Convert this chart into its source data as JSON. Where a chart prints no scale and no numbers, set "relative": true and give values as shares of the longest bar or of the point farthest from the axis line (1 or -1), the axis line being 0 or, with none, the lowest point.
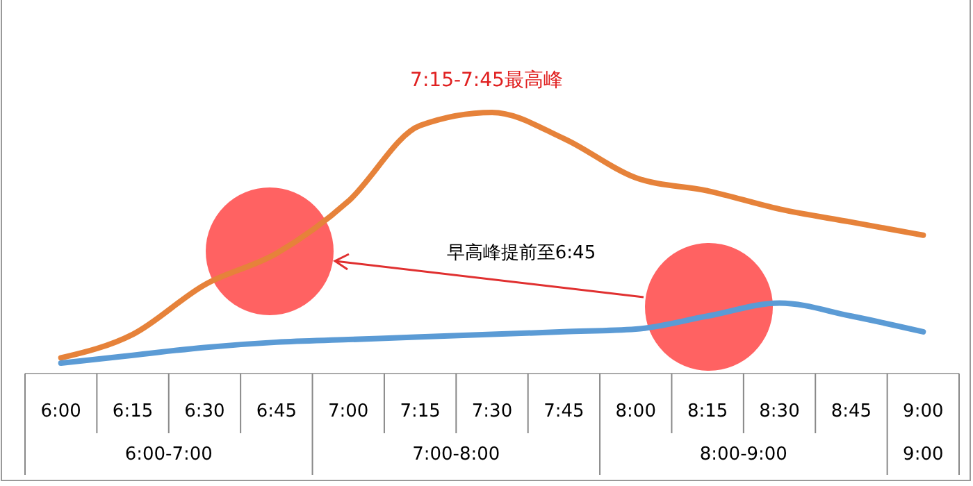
{
  "chart_data": {
    "type": "line",
    "relative": true,
    "categories": [
      "6:00",
      "6:15",
      "6:30",
      "6:45",
      "7:00",
      "7:15",
      "7:30",
      "7:45",
      "8:00",
      "8:15",
      "8:30",
      "8:45",
      "9:00"
    ],
    "series": [
      {
        "color": "#e6823a",
        "values": [
          0.06,
          0.15,
          0.34,
          0.46,
          0.66,
          0.95,
          1,
          0.9,
          0.75,
          0.7,
          0.63,
          0.58,
          0.53
        ]
      },
      {
        "color": "#5b9bd5",
        "values": [
          0.04,
          0.07,
          0.1,
          0.12,
          0.13,
          0.14,
          0.15,
          0.16,
          0.17,
          0.22,
          0.27,
          0.22,
          0.16
        ]
      }
    ],
    "annotations": [
      "7:15-7:45最高峰",
      "早高峰提前至6:45",
      "6:00-7:00",
      "7:00-8:00",
      "8:00-9:00",
      "9:00"
    ],
    "marker": "none",
    "line_style": "solid"
  }
}
